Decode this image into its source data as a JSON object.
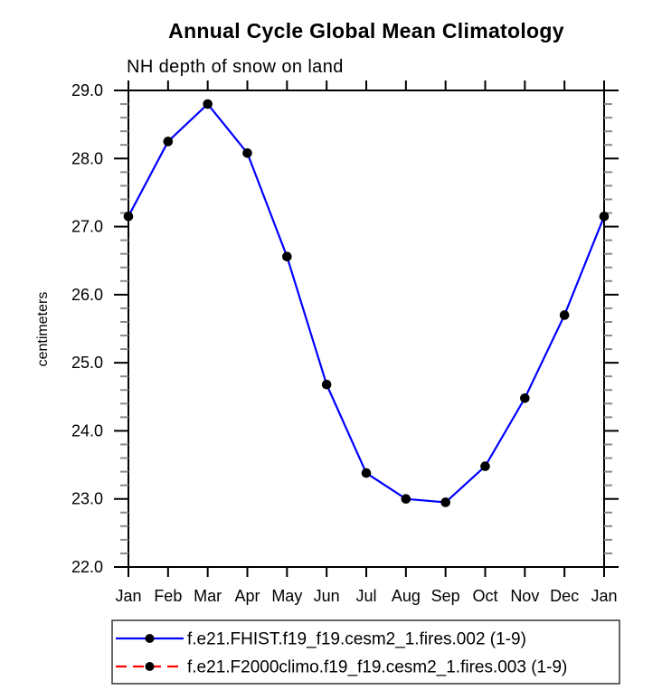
{
  "chart": {
    "title": "Annual Cycle Global Mean Climatology",
    "subtitle": "NH depth of snow on land",
    "ylabel": "centimeters"
  },
  "chart_data": {
    "type": "line",
    "title": "Annual Cycle Global Mean Climatology",
    "subtitle": "NH depth of snow on land",
    "xlabel": "",
    "ylabel": "centimeters",
    "categories": [
      "Jan",
      "Feb",
      "Mar",
      "Apr",
      "May",
      "Jun",
      "Jul",
      "Aug",
      "Sep",
      "Oct",
      "Nov",
      "Dec",
      "Jan"
    ],
    "ylim": [
      22.0,
      29.0
    ],
    "ytick_major_step": 1.0,
    "ytick_minor_step": 0.2,
    "ytick_labels": [
      "22.0",
      "23.0",
      "24.0",
      "25.0",
      "26.0",
      "27.0",
      "28.0",
      "29.0"
    ],
    "grid": false,
    "legend_position": "bottom",
    "axis_color": "#000000",
    "minor_tick_color": "#8a8a8a",
    "series": [
      {
        "name": "f.e21.FHIST.f19_f19.cesm2_1.fires.002 (1-9)",
        "color": "#0000ff",
        "line_style": "solid",
        "marker": "filled-circle",
        "marker_color": "#000000",
        "values": [
          27.15,
          28.25,
          28.8,
          28.08,
          26.56,
          24.68,
          23.38,
          23.0,
          22.95,
          23.48,
          24.48,
          25.7,
          27.15
        ]
      },
      {
        "name": "f.e21.F2000climo.f19_f19.cesm2_1.fires.003 (1-9)",
        "color": "#ff0000",
        "line_style": "dashed",
        "marker": "filled-circle",
        "marker_color": "#000000",
        "values": [],
        "visible_in_plot": false
      }
    ]
  }
}
